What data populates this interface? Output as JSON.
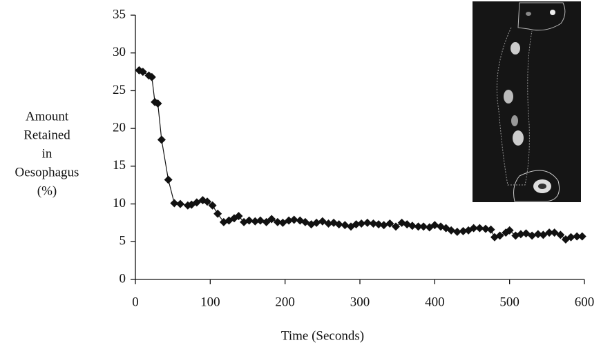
{
  "chart_data": {
    "type": "line",
    "x_label": "Time (Seconds)",
    "y_label": [
      "Amount",
      "Retained",
      "in",
      "Oesophagus",
      "(%)"
    ],
    "x": [
      5,
      10,
      18,
      22,
      26,
      30,
      35,
      44,
      52,
      60,
      70,
      75,
      82,
      90,
      96,
      103,
      110,
      118,
      125,
      132,
      138,
      145,
      152,
      160,
      167,
      175,
      182,
      190,
      197,
      205,
      212,
      220,
      227,
      235,
      242,
      250,
      258,
      265,
      272,
      280,
      288,
      295,
      302,
      310,
      318,
      325,
      332,
      340,
      348,
      356,
      363,
      370,
      378,
      385,
      393,
      400,
      408,
      415,
      422,
      430,
      438,
      445,
      452,
      460,
      468,
      475,
      480,
      487,
      495,
      500,
      508,
      515,
      522,
      530,
      538,
      545,
      553,
      560,
      568,
      575,
      582,
      590,
      597
    ],
    "values": [
      27.7,
      27.5,
      27.0,
      26.8,
      23.5,
      23.3,
      18.5,
      13.2,
      10.1,
      10.0,
      9.8,
      9.9,
      10.2,
      10.5,
      10.3,
      9.8,
      8.7,
      7.6,
      7.8,
      8.1,
      8.4,
      7.6,
      7.8,
      7.7,
      7.8,
      7.6,
      8.0,
      7.6,
      7.5,
      7.8,
      7.9,
      7.8,
      7.6,
      7.3,
      7.5,
      7.7,
      7.4,
      7.5,
      7.3,
      7.2,
      7.0,
      7.3,
      7.4,
      7.5,
      7.4,
      7.3,
      7.2,
      7.4,
      7.0,
      7.5,
      7.3,
      7.1,
      7.0,
      7.0,
      6.9,
      7.2,
      7.0,
      6.8,
      6.5,
      6.3,
      6.4,
      6.5,
      6.8,
      6.8,
      6.7,
      6.6,
      5.6,
      5.8,
      6.2,
      6.5,
      5.8,
      6.0,
      6.1,
      5.8,
      6.0,
      5.9,
      6.2,
      6.2,
      5.9,
      5.3,
      5.6,
      5.7,
      5.7
    ],
    "color": "#111111",
    "xlim": [
      0,
      600
    ],
    "xticks": [
      0,
      100,
      200,
      300,
      400,
      500,
      600
    ],
    "ylim": [
      0,
      35
    ],
    "yticks": [
      0,
      5,
      10,
      15,
      20,
      25,
      30,
      35
    ],
    "grid": false
  }
}
